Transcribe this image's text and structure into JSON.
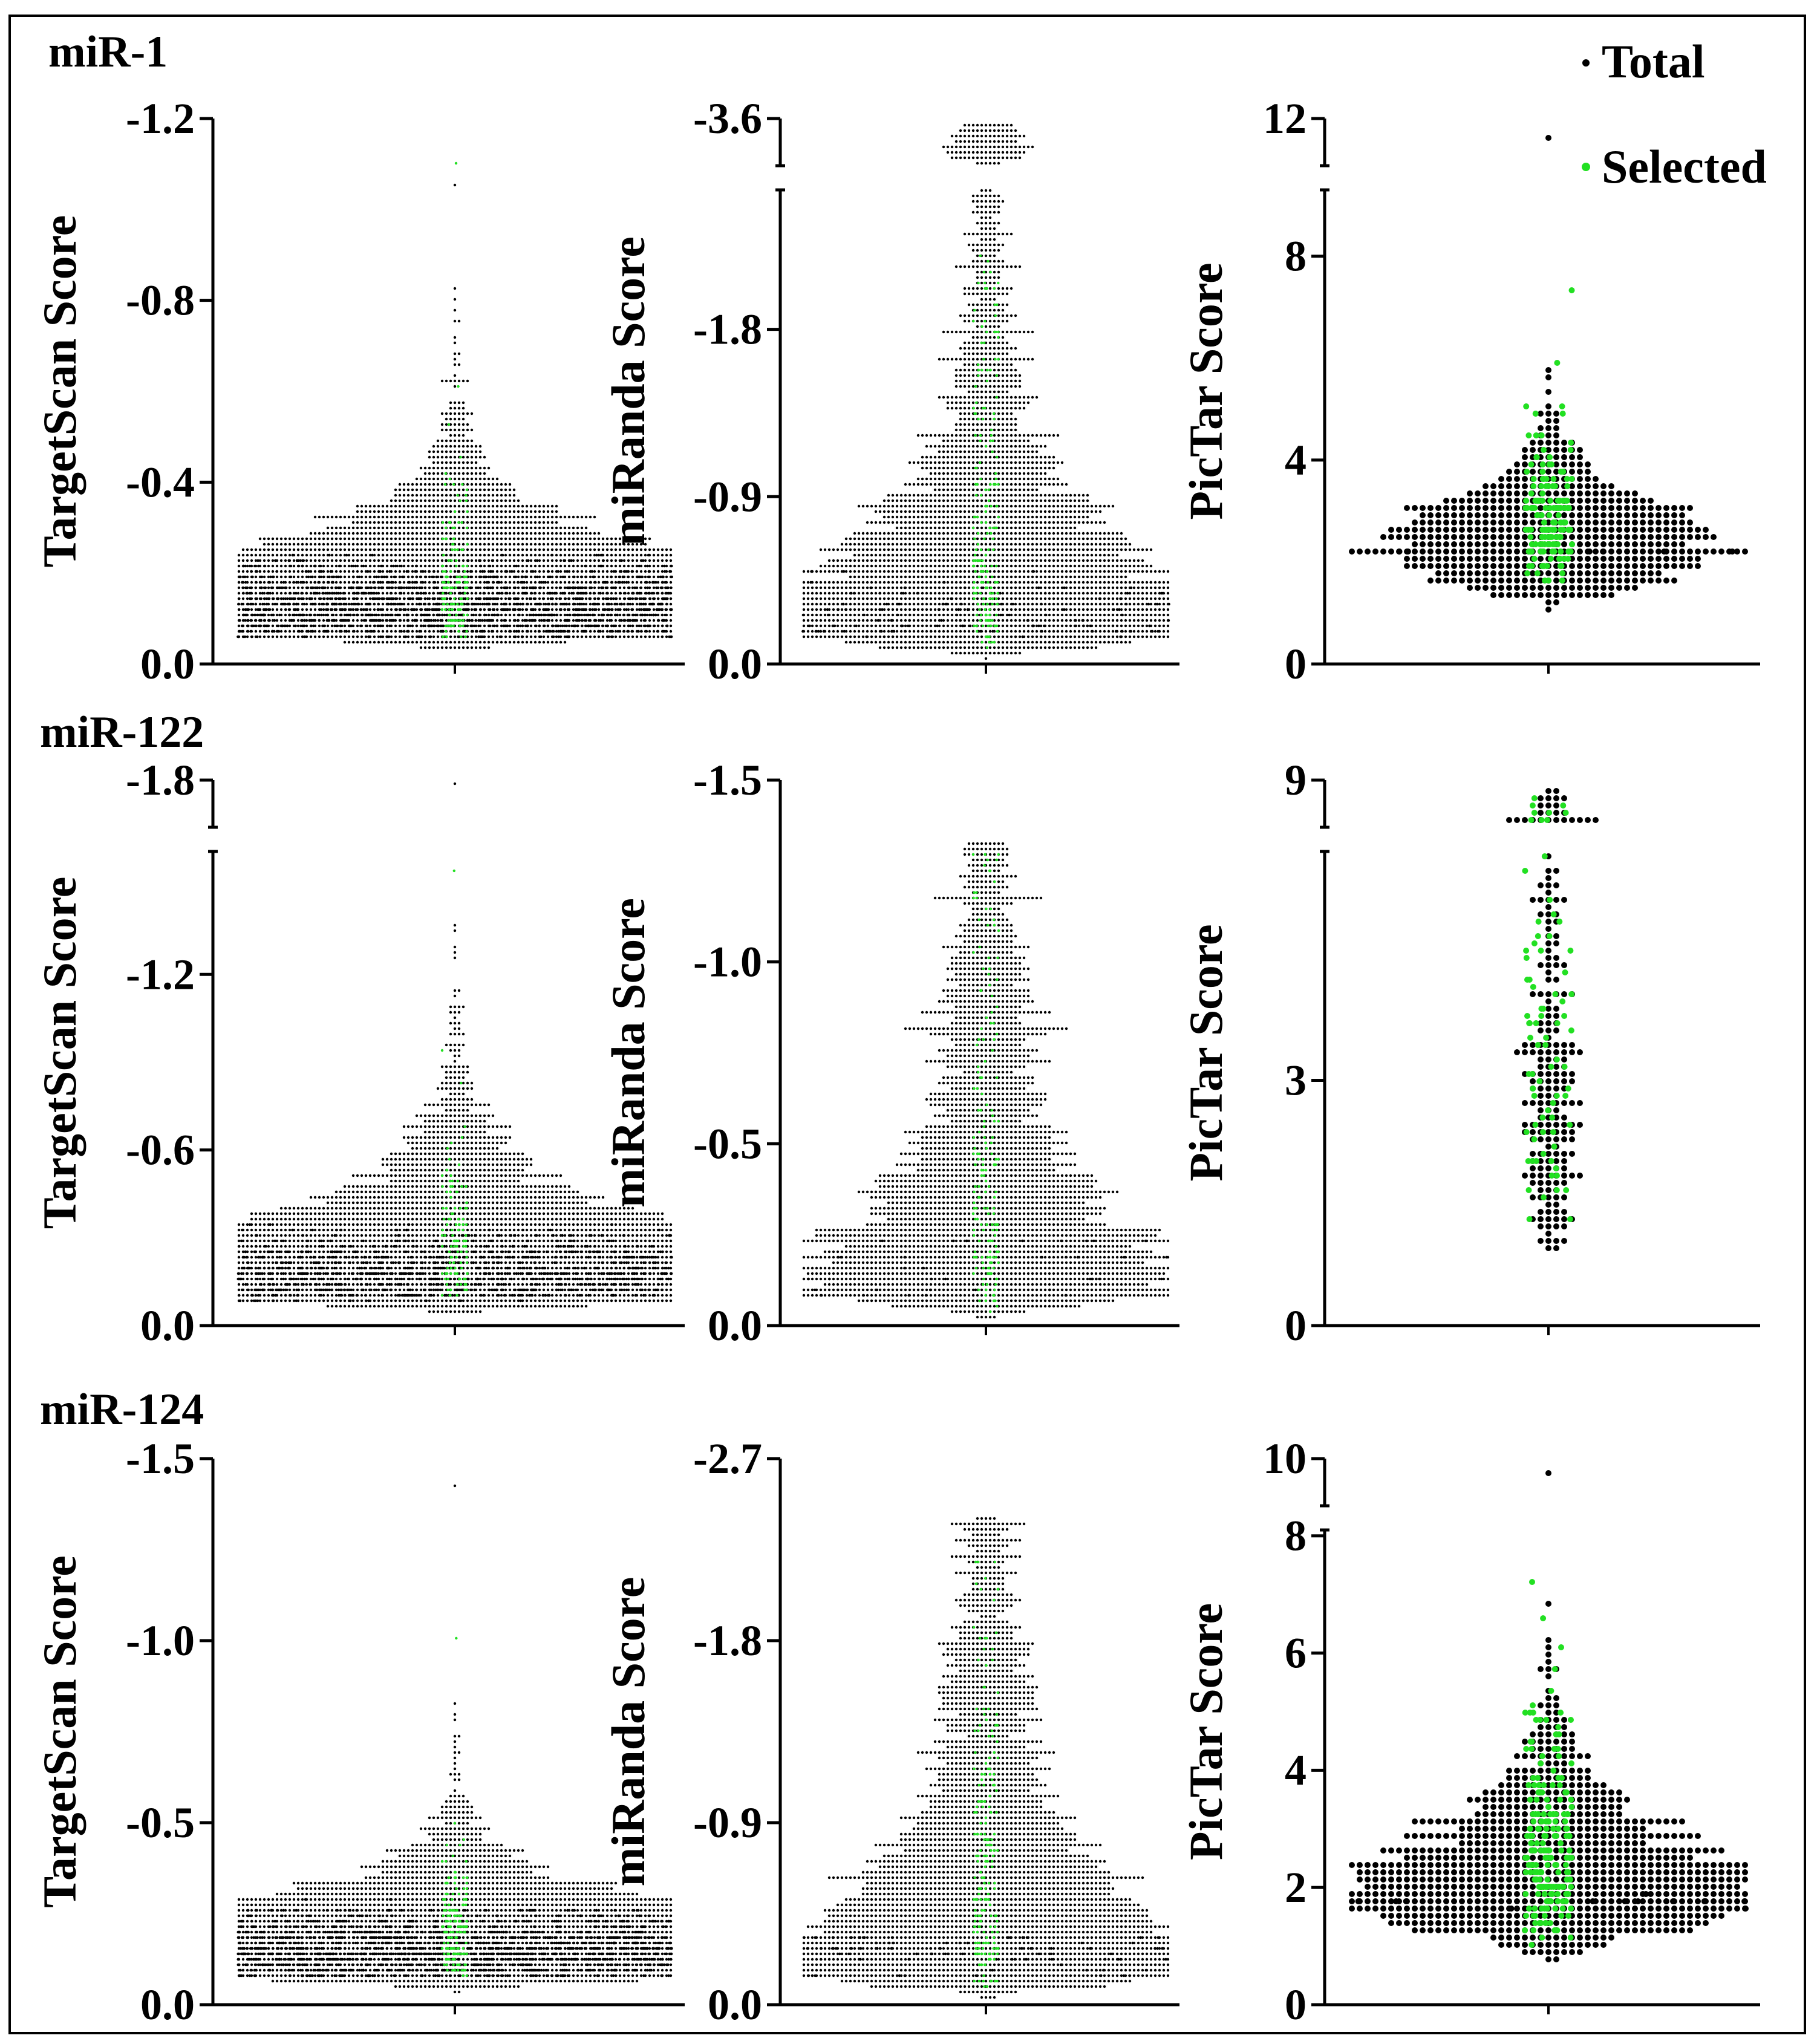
{
  "legend": {
    "total_label": "Total",
    "selected_label": "Selected",
    "total_color": "#000000",
    "selected_color": "#22e022"
  },
  "chart_data": [
    {
      "type": "scatter",
      "group": "miR-1",
      "panel_title": "miR-1",
      "ylabel": "TargetScan Score",
      "yticks": [
        "0.0",
        "-0.4",
        "-0.8",
        "-1.2"
      ],
      "ytick_values": [
        0,
        0.4,
        0.8,
        1.2
      ],
      "ylim": [
        0,
        1.2
      ],
      "axis_break": false,
      "total_count": 4200,
      "selected_count": 150,
      "total_max": 1.05,
      "selected_max": 1.1,
      "median": 0.16,
      "spread": 0.55
    },
    {
      "type": "scatter",
      "group": "miR-1",
      "panel_title": "",
      "ylabel": "miRanda Score",
      "yticks": [
        "0.0",
        "-0.9",
        "-1.8",
        "-3.6"
      ],
      "ytick_values": [
        0,
        0.9,
        1.8,
        3.6
      ],
      "ylim": [
        0,
        3.6
      ],
      "axis_break": true,
      "break_from": 2.55,
      "break_to": 3.6,
      "total_count": 3200,
      "selected_count": 200,
      "total_max": 3.5,
      "selected_max": 2.2,
      "median": 0.6,
      "spread": 0.9
    },
    {
      "type": "scatter",
      "group": "miR-1",
      "panel_title": "",
      "ylabel": "PicTar Score",
      "yticks": [
        "0",
        "4",
        "8",
        "12"
      ],
      "ytick_values": [
        0,
        4,
        8,
        12
      ],
      "ylim": [
        0,
        12
      ],
      "axis_break": true,
      "break_from": 9.3,
      "break_to": 12,
      "total_count": 600,
      "selected_count": 150,
      "total_max": 11,
      "selected_max": 7.4,
      "median": 2.5,
      "spread": 0.3
    },
    {
      "type": "scatter",
      "group": "miR-122",
      "panel_title": "miR-122",
      "ylabel": "TargetScan Score",
      "yticks": [
        "0.0",
        "-0.6",
        "-1.2",
        "-1.8"
      ],
      "ytick_values": [
        0,
        0.6,
        1.2,
        1.8
      ],
      "ylim": [
        0,
        1.8
      ],
      "axis_break": true,
      "break_from": 1.62,
      "break_to": 1.8,
      "total_count": 3600,
      "selected_count": 120,
      "total_max": 1.78,
      "selected_max": 1.55,
      "median": 0.25,
      "spread": 0.6
    },
    {
      "type": "scatter",
      "group": "miR-122",
      "panel_title": "",
      "ylabel": "miRanda Score",
      "yticks": [
        "0.0",
        "-0.5",
        "-1.0",
        "-1.5"
      ],
      "ytick_values": [
        0,
        0.5,
        1.0,
        1.5
      ],
      "ylim": [
        0,
        1.5
      ],
      "axis_break": false,
      "total_count": 3000,
      "selected_count": 180,
      "total_max": 1.33,
      "selected_max": 1.3,
      "median": 0.35,
      "spread": 0.9
    },
    {
      "type": "scatter",
      "group": "miR-122",
      "panel_title": "",
      "ylabel": "PicTar Score",
      "yticks": [
        "0",
        "3",
        "9"
      ],
      "ytick_values": [
        0,
        3,
        9
      ],
      "ylim": [
        0,
        9
      ],
      "axis_break": true,
      "break_from": 5.8,
      "break_to": 9,
      "total_count": 220,
      "selected_count": 80,
      "total_max": 8.3,
      "selected_max": 7.6,
      "median": 3.0,
      "spread": 0.5
    },
    {
      "type": "scatter",
      "group": "miR-124",
      "panel_title": "miR-124",
      "ylabel": "TargetScan Score",
      "yticks": [
        "0.0",
        "-0.5",
        "-1.0",
        "-1.5"
      ],
      "ytick_values": [
        0,
        0.5,
        1.0,
        1.5
      ],
      "ylim": [
        0,
        1.5
      ],
      "axis_break": false,
      "total_count": 3800,
      "selected_count": 160,
      "total_max": 1.42,
      "selected_max": 1.0,
      "median": 0.18,
      "spread": 0.5
    },
    {
      "type": "scatter",
      "group": "miR-124",
      "panel_title": "",
      "ylabel": "miRanda Score",
      "yticks": [
        "0.0",
        "-0.9",
        "-1.8",
        "-2.7"
      ],
      "ytick_values": [
        0,
        0.9,
        1.8,
        2.7
      ],
      "ylim": [
        0,
        2.7
      ],
      "axis_break": false,
      "total_count": 3200,
      "selected_count": 200,
      "total_max": 2.4,
      "selected_max": 2.2,
      "median": 0.6,
      "spread": 0.9
    },
    {
      "type": "scatter",
      "group": "miR-124",
      "panel_title": "",
      "ylabel": "PicTar Score",
      "yticks": [
        "0",
        "2",
        "4",
        "6",
        "8",
        "10"
      ],
      "ytick_values": [
        0,
        2,
        4,
        6,
        8,
        10
      ],
      "ylim": [
        0,
        10
      ],
      "axis_break": true,
      "break_from": 8.1,
      "break_to": 10,
      "total_count": 900,
      "selected_count": 200,
      "total_max": 9.4,
      "selected_max": 7.2,
      "median": 2.3,
      "spread": 0.4
    }
  ]
}
